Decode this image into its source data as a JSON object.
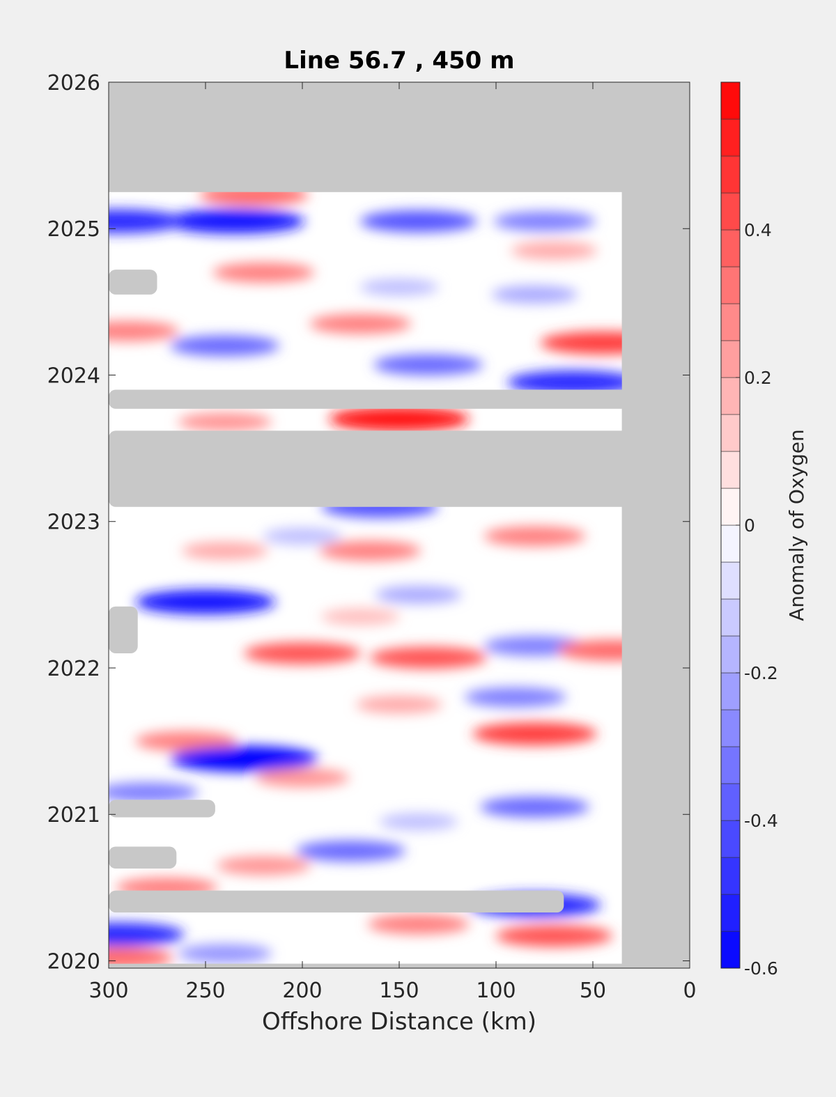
{
  "chart_data": {
    "type": "heatmap",
    "title": "Line 56.7 , 450 m",
    "xlabel": "Offshore Distance (km)",
    "ylabel": "",
    "xlim": [
      300,
      0
    ],
    "ylim": [
      2019.95,
      2026
    ],
    "x_ticks": [
      "300",
      "250",
      "200",
      "150",
      "100",
      "50",
      "0"
    ],
    "y_ticks": [
      "2020",
      "2021",
      "2022",
      "2023",
      "2024",
      "2025",
      "2026"
    ],
    "colorbar": {
      "label": "Anomaly of Oxygen",
      "range": [
        -0.6,
        0.6
      ],
      "ticks": [
        "0.4",
        "0.2",
        "0",
        "-0.2",
        "-0.4",
        "-0.6"
      ],
      "levels": 24,
      "low_color": "#0000ff",
      "mid_color": "#ffffff",
      "high_color": "#ff0000"
    },
    "no_data_color": "#c8c8c8",
    "data_extent": {
      "x": [
        35,
        300
      ],
      "y": [
        2019.98,
        2025.25
      ]
    },
    "no_data_bands": [
      {
        "x": [
          0,
          300
        ],
        "y": [
          2023.1,
          2023.62
        ]
      },
      {
        "x": [
          0,
          300
        ],
        "y": [
          2023.77,
          2023.9
        ]
      },
      {
        "x": [
          65,
          300
        ],
        "y": [
          2020.33,
          2020.48
        ]
      },
      {
        "x": [
          265,
          300
        ],
        "y": [
          2020.63,
          2020.78
        ]
      },
      {
        "x": [
          245,
          300
        ],
        "y": [
          2020.98,
          2021.1
        ]
      },
      {
        "x": [
          285,
          300
        ],
        "y": [
          2022.1,
          2022.42
        ]
      },
      {
        "x": [
          275,
          300
        ],
        "y": [
          2024.55,
          2024.72
        ]
      }
    ],
    "anomaly_features": [
      {
        "x": 235,
        "y": 2025.05,
        "value": -0.55
      },
      {
        "x": 295,
        "y": 2025.05,
        "value": -0.5
      },
      {
        "x": 140,
        "y": 2025.05,
        "value": -0.4
      },
      {
        "x": 225,
        "y": 2025.23,
        "value": 0.35
      },
      {
        "x": 75,
        "y": 2025.05,
        "value": -0.3
      },
      {
        "x": 70,
        "y": 2024.85,
        "value": 0.2
      },
      {
        "x": 220,
        "y": 2024.7,
        "value": 0.3
      },
      {
        "x": 150,
        "y": 2024.6,
        "value": -0.15
      },
      {
        "x": 80,
        "y": 2024.55,
        "value": -0.2
      },
      {
        "x": 170,
        "y": 2024.35,
        "value": 0.3
      },
      {
        "x": 290,
        "y": 2024.3,
        "value": 0.3
      },
      {
        "x": 45,
        "y": 2024.22,
        "value": 0.45
      },
      {
        "x": 240,
        "y": 2024.2,
        "value": -0.35
      },
      {
        "x": 135,
        "y": 2024.07,
        "value": -0.35
      },
      {
        "x": 60,
        "y": 2023.95,
        "value": -0.5
      },
      {
        "x": 150,
        "y": 2023.7,
        "value": 0.55
      },
      {
        "x": 240,
        "y": 2023.68,
        "value": 0.25
      },
      {
        "x": 160,
        "y": 2023.1,
        "value": -0.4
      },
      {
        "x": 200,
        "y": 2022.9,
        "value": -0.15
      },
      {
        "x": 80,
        "y": 2022.9,
        "value": 0.3
      },
      {
        "x": 165,
        "y": 2022.8,
        "value": 0.3
      },
      {
        "x": 240,
        "y": 2022.8,
        "value": 0.2
      },
      {
        "x": 250,
        "y": 2022.45,
        "value": -0.55
      },
      {
        "x": 140,
        "y": 2022.5,
        "value": -0.2
      },
      {
        "x": 170,
        "y": 2022.35,
        "value": 0.15
      },
      {
        "x": 200,
        "y": 2022.1,
        "value": 0.4
      },
      {
        "x": 135,
        "y": 2022.07,
        "value": 0.4
      },
      {
        "x": 80,
        "y": 2022.15,
        "value": -0.3
      },
      {
        "x": 40,
        "y": 2022.12,
        "value": 0.35
      },
      {
        "x": 90,
        "y": 2021.8,
        "value": -0.3
      },
      {
        "x": 150,
        "y": 2021.75,
        "value": 0.2
      },
      {
        "x": 260,
        "y": 2021.5,
        "value": 0.3
      },
      {
        "x": 80,
        "y": 2021.55,
        "value": 0.45
      },
      {
        "x": 230,
        "y": 2021.38,
        "value": -0.6
      },
      {
        "x": 200,
        "y": 2021.25,
        "value": 0.25
      },
      {
        "x": 280,
        "y": 2021.15,
        "value": -0.3
      },
      {
        "x": 80,
        "y": 2021.05,
        "value": -0.35
      },
      {
        "x": 140,
        "y": 2020.95,
        "value": -0.15
      },
      {
        "x": 175,
        "y": 2020.75,
        "value": -0.35
      },
      {
        "x": 220,
        "y": 2020.65,
        "value": 0.25
      },
      {
        "x": 270,
        "y": 2020.5,
        "value": 0.3
      },
      {
        "x": 80,
        "y": 2020.38,
        "value": -0.5
      },
      {
        "x": 140,
        "y": 2020.25,
        "value": 0.3
      },
      {
        "x": 70,
        "y": 2020.17,
        "value": 0.4
      },
      {
        "x": 295,
        "y": 2020.18,
        "value": -0.5
      },
      {
        "x": 240,
        "y": 2020.05,
        "value": -0.25
      },
      {
        "x": 295,
        "y": 2020.02,
        "value": 0.35
      }
    ]
  }
}
